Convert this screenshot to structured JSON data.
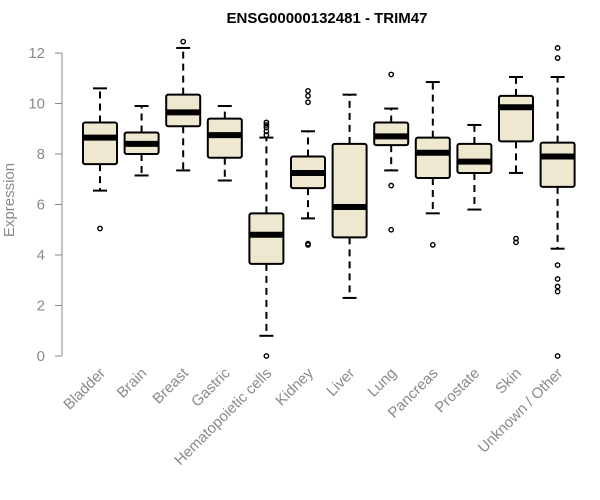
{
  "chart_data": {
    "type": "boxplot",
    "title": "ENSG00000132481 - TRIM47",
    "xlabel": "",
    "ylabel": "Expression",
    "ylim": [
      0,
      12
    ],
    "yticks": [
      0,
      2,
      4,
      6,
      8,
      10,
      12
    ],
    "grid": false,
    "box_color": "#efe8d0",
    "categories": [
      "Bladder",
      "Brain",
      "Breast",
      "Gastric",
      "Hematopoietic cells",
      "Kidney",
      "Liver",
      "Lung",
      "Pancreas",
      "Prostate",
      "Skin",
      "Unknown / Other"
    ],
    "boxes": [
      {
        "q1": 7.6,
        "median": 8.65,
        "q3": 9.25,
        "whisker_low": 6.55,
        "whisker_high": 10.6,
        "outliers": [
          5.05
        ]
      },
      {
        "q1": 8.0,
        "median": 8.4,
        "q3": 8.85,
        "whisker_low": 7.15,
        "whisker_high": 9.9,
        "outliers": []
      },
      {
        "q1": 9.1,
        "median": 9.65,
        "q3": 10.35,
        "whisker_low": 7.35,
        "whisker_high": 12.2,
        "outliers": [
          12.45
        ]
      },
      {
        "q1": 7.85,
        "median": 8.75,
        "q3": 9.4,
        "whisker_low": 6.95,
        "whisker_high": 9.9,
        "outliers": []
      },
      {
        "q1": 3.65,
        "median": 4.8,
        "q3": 5.65,
        "whisker_low": 0.8,
        "whisker_high": 8.65,
        "outliers": [
          0.0,
          8.75,
          8.9,
          9.05,
          9.15,
          9.25
        ]
      },
      {
        "q1": 6.65,
        "median": 7.25,
        "q3": 7.9,
        "whisker_low": 5.45,
        "whisker_high": 8.9,
        "outliers": [
          4.4,
          4.45,
          10.05,
          10.3,
          10.5
        ]
      },
      {
        "q1": 4.7,
        "median": 5.9,
        "q3": 8.4,
        "whisker_low": 2.3,
        "whisker_high": 10.35,
        "outliers": []
      },
      {
        "q1": 8.35,
        "median": 8.7,
        "q3": 9.25,
        "whisker_low": 7.35,
        "whisker_high": 9.8,
        "outliers": [
          5.0,
          6.75,
          11.15
        ]
      },
      {
        "q1": 7.05,
        "median": 8.05,
        "q3": 8.65,
        "whisker_low": 5.65,
        "whisker_high": 10.85,
        "outliers": [
          4.4
        ]
      },
      {
        "q1": 7.25,
        "median": 7.7,
        "q3": 8.4,
        "whisker_low": 5.8,
        "whisker_high": 9.15,
        "outliers": []
      },
      {
        "q1": 8.5,
        "median": 9.85,
        "q3": 10.3,
        "whisker_low": 7.25,
        "whisker_high": 11.05,
        "outliers": [
          4.5,
          4.65
        ]
      },
      {
        "q1": 6.7,
        "median": 7.9,
        "q3": 8.45,
        "whisker_low": 4.25,
        "whisker_high": 11.05,
        "outliers": [
          0.0,
          2.55,
          2.75,
          3.05,
          3.6,
          11.8,
          12.2
        ]
      }
    ]
  }
}
